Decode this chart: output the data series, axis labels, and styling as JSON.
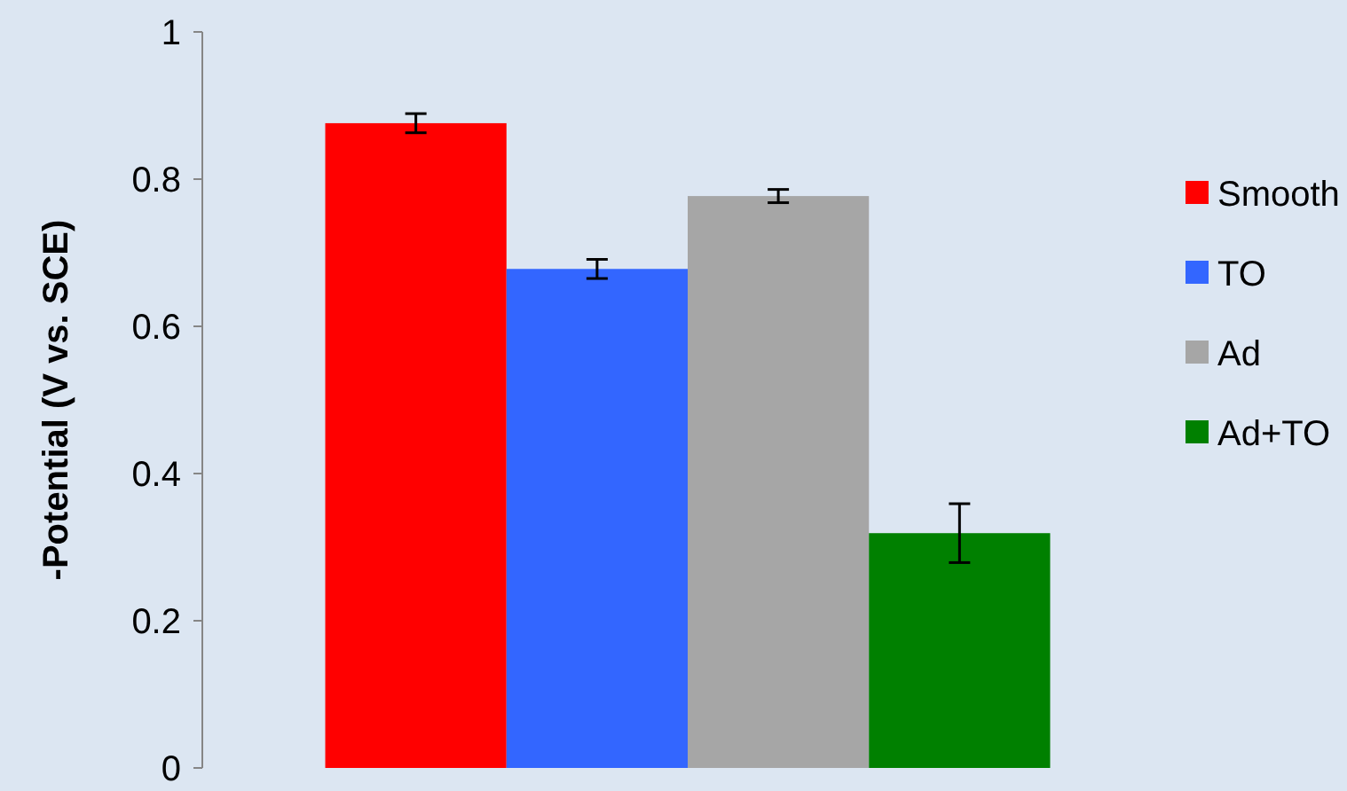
{
  "chart_data": {
    "type": "bar",
    "ylabel": "-Potential (V vs. SCE)",
    "categories": [
      null
    ],
    "series": [
      {
        "name": "Smooth",
        "color": "#ff0000",
        "values": [
          0.876
        ],
        "errors": [
          0.013
        ]
      },
      {
        "name": "TO",
        "color": "#3366ff",
        "values": [
          0.678
        ],
        "errors": [
          0.013
        ]
      },
      {
        "name": "Ad",
        "color": "#a6a6a6",
        "values": [
          0.777
        ],
        "errors": [
          0.009
        ]
      },
      {
        "name": "Ad+TO",
        "color": "#008000",
        "values": [
          0.319
        ],
        "errors": [
          0.04
        ]
      }
    ],
    "ylim": [
      0,
      1
    ],
    "yticks": [
      0,
      0.2,
      0.4,
      0.6,
      0.8,
      1
    ],
    "legend": "right",
    "grid": false
  }
}
